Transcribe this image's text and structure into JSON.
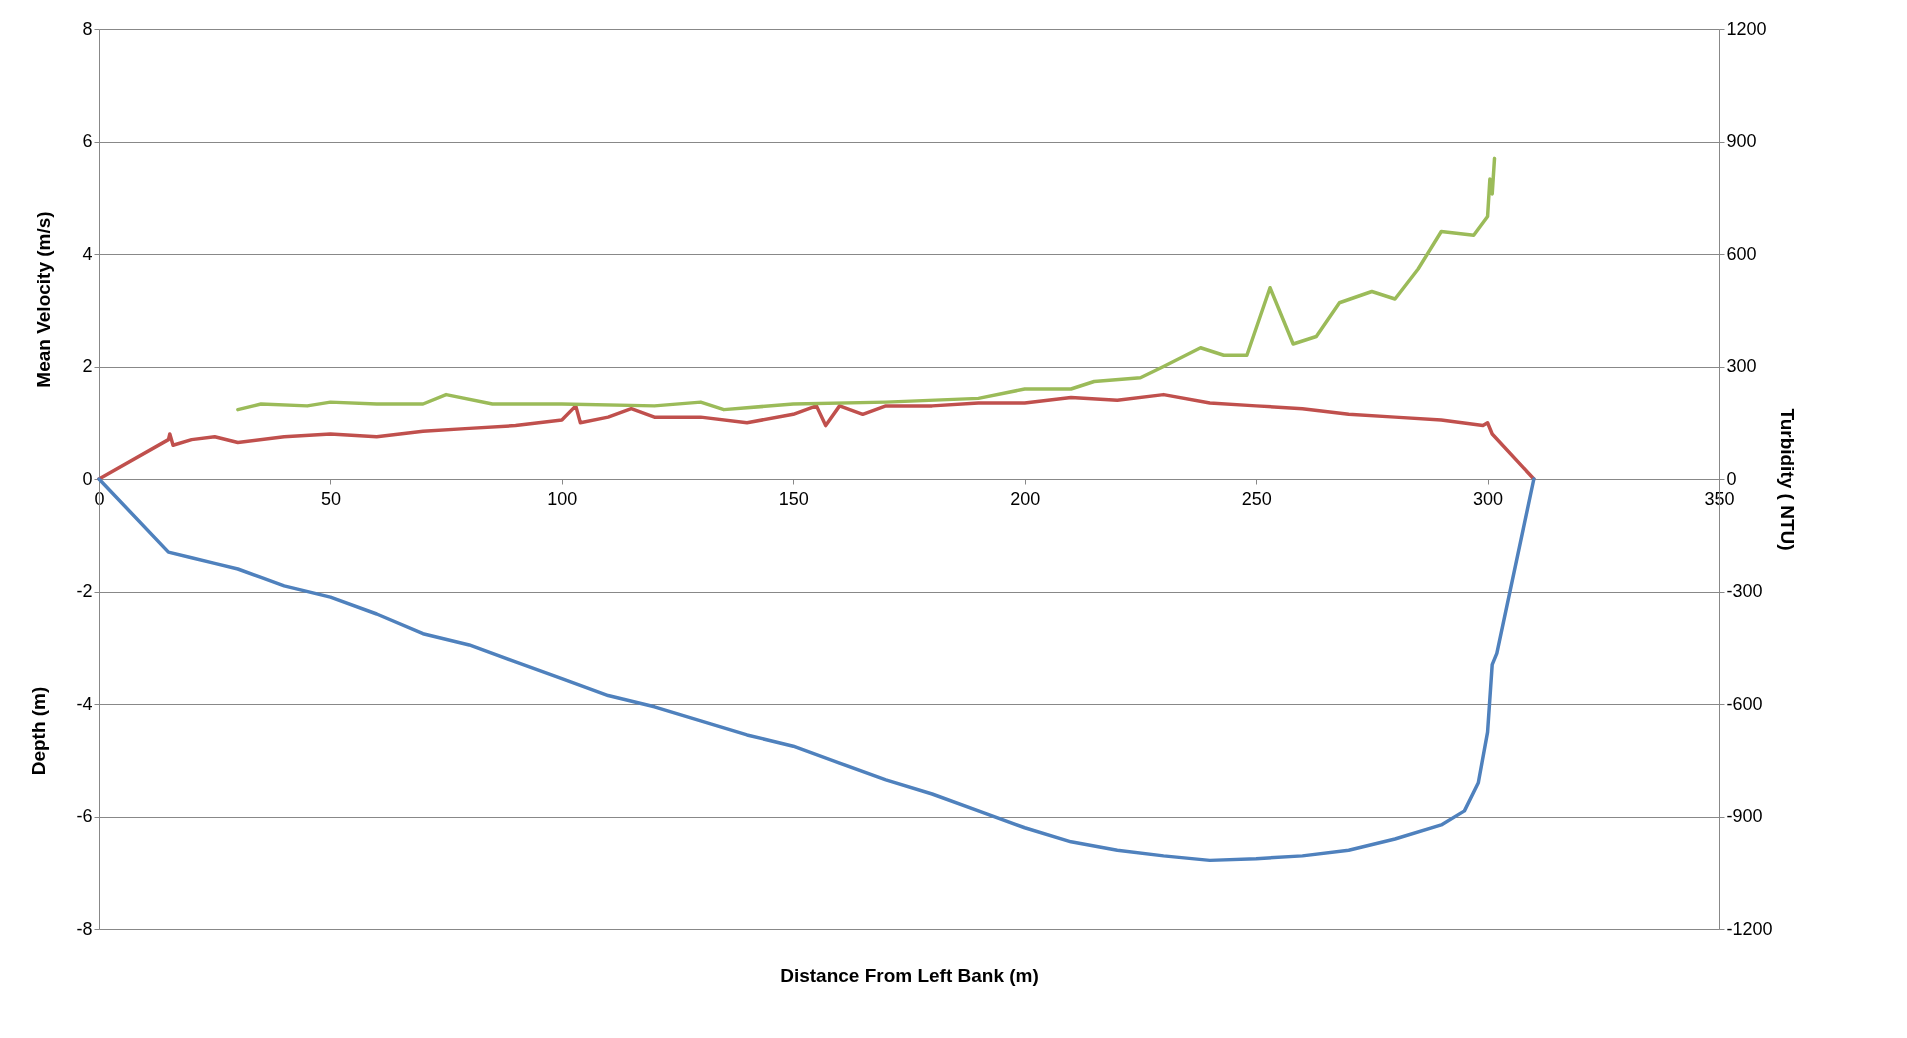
{
  "chart_data": {
    "type": "line",
    "xlabel": "Distance From Left Bank (m)",
    "ylabel": "Mean Velocity (m/s)",
    "y2label": "Turbidity ( NTU)",
    "annotations": [
      "Depth (m)"
    ],
    "xlim": [
      0,
      350
    ],
    "xticks": [
      0,
      50,
      100,
      150,
      200,
      250,
      300,
      350
    ],
    "ylim": [
      -8,
      8
    ],
    "yticks": [
      -8,
      -6,
      -4,
      -2,
      0,
      2,
      4,
      6,
      8
    ],
    "y2lim": [
      -1200,
      1200
    ],
    "y2ticks": [
      -1200,
      -900,
      -600,
      -300,
      0,
      300,
      600,
      900,
      1200
    ],
    "grid": "y",
    "series": [
      {
        "color": "#c0504d",
        "x": [
          0,
          15,
          15.3,
          16,
          20,
          25,
          30,
          40,
          50,
          60,
          70,
          80,
          90,
          100,
          103,
          104,
          110,
          115,
          120,
          130,
          140,
          150,
          155,
          157,
          160,
          165,
          170,
          180,
          190,
          200,
          210,
          220,
          230,
          240,
          250,
          260,
          270,
          280,
          290,
          299,
          300,
          301,
          310
        ],
        "values": [
          0,
          0.7,
          0.8,
          0.6,
          0.7,
          0.75,
          0.65,
          0.75,
          0.8,
          0.75,
          0.85,
          0.9,
          0.95,
          1.05,
          1.3,
          1.0,
          1.1,
          1.25,
          1.1,
          1.1,
          1.0,
          1.15,
          1.3,
          0.95,
          1.3,
          1.15,
          1.3,
          1.3,
          1.35,
          1.35,
          1.45,
          1.4,
          1.5,
          1.35,
          1.3,
          1.25,
          1.15,
          1.1,
          1.05,
          0.95,
          1.0,
          0.8,
          0
        ]
      },
      {
        "color": "#4f81bd",
        "x": [
          0,
          15,
          20,
          25,
          30,
          35,
          40,
          50,
          60,
          70,
          80,
          90,
          100,
          110,
          120,
          130,
          140,
          150,
          160,
          170,
          180,
          190,
          200,
          210,
          220,
          230,
          240,
          250,
          260,
          270,
          280,
          290,
          295,
          298,
          300,
          301,
          302,
          310
        ],
        "values": [
          0,
          -1.3,
          -1.4,
          -1.5,
          -1.6,
          -1.75,
          -1.9,
          -2.1,
          -2.4,
          -2.75,
          -2.95,
          -3.25,
          -3.55,
          -3.85,
          -4.05,
          -4.3,
          -4.55,
          -4.75,
          -5.05,
          -5.35,
          -5.6,
          -5.9,
          -6.2,
          -6.45,
          -6.6,
          -6.7,
          -6.78,
          -6.75,
          -6.7,
          -6.6,
          -6.4,
          -6.15,
          -5.9,
          -5.4,
          -4.5,
          -3.3,
          -3.1,
          0
        ]
      },
      {
        "color": "#9bbb59",
        "axis": "y2",
        "x": [
          30,
          35,
          45,
          50,
          60,
          70,
          75,
          85,
          100,
          120,
          130,
          135,
          150,
          170,
          190,
          200,
          210,
          215,
          225,
          230,
          238,
          243,
          248,
          253,
          258,
          263,
          268,
          275,
          280,
          285,
          290,
          297,
          300,
          300.5,
          301,
          301.5
        ],
        "values": [
          185,
          200,
          195,
          205,
          200,
          200,
          225,
          200,
          200,
          195,
          205,
          185,
          200,
          205,
          215,
          240,
          240,
          260,
          270,
          300,
          350,
          330,
          330,
          510,
          360,
          380,
          470,
          500,
          480,
          560,
          660,
          650,
          700,
          800,
          760,
          855
        ]
      }
    ]
  }
}
